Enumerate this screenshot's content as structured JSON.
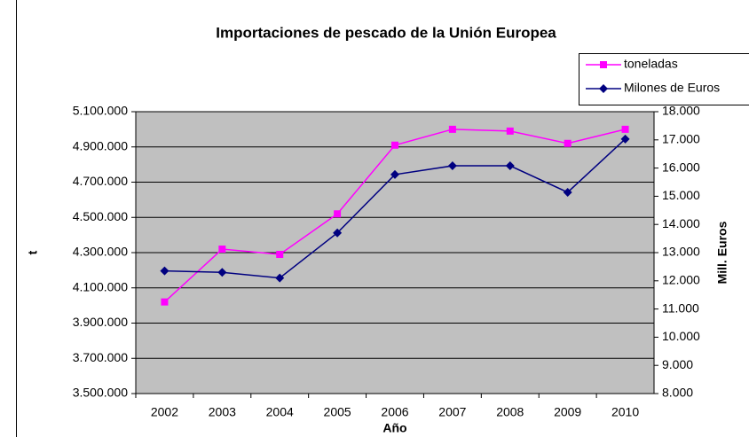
{
  "chart_data": {
    "type": "line",
    "title": "Importaciones de pescado de la Unión Europea",
    "x_label": "Año",
    "y_label": "t",
    "y2_label": "Mill. Euros",
    "categories": [
      "2002",
      "2003",
      "2004",
      "2005",
      "2006",
      "2007",
      "2008",
      "2009",
      "2010"
    ],
    "series": [
      {
        "name": "toneladas",
        "color": "#ff00ff",
        "marker": "square",
        "values": [
          4020000,
          4320000,
          4290000,
          4520000,
          4910000,
          5000000,
          4990000,
          4920000,
          5000000
        ]
      },
      {
        "name": "Milones de Euros",
        "color": "#000080",
        "marker": "diamond",
        "axis": "y2",
        "values": [
          12350,
          12300,
          12100,
          13700,
          15770,
          16080,
          16080,
          15140,
          17030
        ]
      }
    ],
    "ylim": [
      3500000,
      5100000
    ],
    "yticks": [
      {
        "value": 3500000,
        "label": "3.500.000"
      },
      {
        "value": 3700000,
        "label": "3.700.000"
      },
      {
        "value": 3900000,
        "label": "3.900.000"
      },
      {
        "value": 4100000,
        "label": "4.100.000"
      },
      {
        "value": 4300000,
        "label": "4.300.000"
      },
      {
        "value": 4500000,
        "label": "4.500.000"
      },
      {
        "value": 4700000,
        "label": "4.700.000"
      },
      {
        "value": 4900000,
        "label": "4.900.000"
      },
      {
        "value": 5100000,
        "label": "5.100.000"
      }
    ],
    "y2lim": [
      8000,
      18000
    ],
    "y2ticks": [
      {
        "value": 8000,
        "label": "8.000"
      },
      {
        "value": 9000,
        "label": "9.000"
      },
      {
        "value": 10000,
        "label": "10.000"
      },
      {
        "value": 11000,
        "label": "11.000"
      },
      {
        "value": 12000,
        "label": "12.000"
      },
      {
        "value": 13000,
        "label": "13.000"
      },
      {
        "value": 14000,
        "label": "14.000"
      },
      {
        "value": 15000,
        "label": "15.000"
      },
      {
        "value": 16000,
        "label": "16.000"
      },
      {
        "value": 17000,
        "label": "17.000"
      },
      {
        "value": 18000,
        "label": "18.000"
      }
    ],
    "grid": true,
    "legend": "top-right",
    "plot_background": "#c0c0c0"
  }
}
